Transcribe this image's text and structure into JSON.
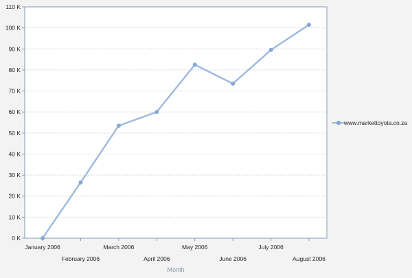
{
  "chart_data": {
    "type": "line",
    "categories": [
      "January 2006",
      "February 2006",
      "March 2006",
      "April 2006",
      "May 2006",
      "June 2006",
      "July 2006",
      "August 2006"
    ],
    "series": [
      {
        "name": "www.markettoyota.co.za",
        "values": [
          0,
          26500,
          53500,
          60000,
          82500,
          73500,
          89500,
          101500
        ]
      }
    ],
    "y_ticks": [
      "0 K",
      "10 K",
      "20 K",
      "30 K",
      "40 K",
      "50 K",
      "60 K",
      "70 K",
      "80 K",
      "90 K",
      "100 K",
      "110 K"
    ],
    "ylim": [
      0,
      110000
    ],
    "xlabel": "Month",
    "ylabel": "",
    "title": "",
    "grid": true,
    "legend_position": "right",
    "colors": {
      "line": "#9db9df",
      "marker": "#86a8d6",
      "axis": "#7e9bbd",
      "grid": "#d6d6d6",
      "text": "#222222",
      "xlabel": "#8a9bb0",
      "background": "#f3f3f3",
      "plot_background": "#ffffff"
    }
  }
}
